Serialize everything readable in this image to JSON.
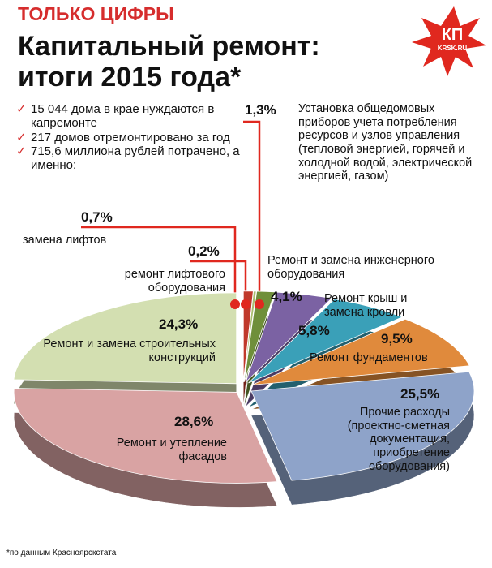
{
  "kicker": "ТОЛЬКО ЦИФРЫ",
  "logo": {
    "main": "КП",
    "sub": "KRSK.RU"
  },
  "notes": [
    "15 044 дома в крае нуждаются в капремонте",
    "217 домов отремонтировано за год",
    "715,6 миллиона рублей потрачено, а именно:"
  ],
  "footnote": "*по данным Красноярскстата",
  "chart_data": {
    "type": "pie",
    "title": "Капитальный ремонт: итоги 2015 года*",
    "categories": [
      "замена лифтов",
      "ремонт лифтового оборудования",
      "Установка общедомовых приборов учета потребления ресурсов и узлов управления (тепловой энергией, горячей и холодной водой, электрической энергией, газом)",
      "Ремонт и замена инженерного оборудования",
      "Ремонт крыш и замена кровли",
      "Ремонт фундаментов",
      "Прочие расходы (проектно-сметная документация, приобретение оборудования)",
      "Ремонт и утепление фасадов",
      "Ремонт и замена строительных конструкций"
    ],
    "values": [
      0.7,
      0.2,
      1.3,
      4.1,
      5.8,
      9.5,
      25.5,
      28.6,
      24.3
    ],
    "value_labels": [
      "0,7%",
      "0,2%",
      "1,3%",
      "4,1%",
      "5,8%",
      "9,5%",
      "25,5%",
      "28,6%",
      "24,3%"
    ],
    "colors": [
      "#c0392b",
      "#a9bd6e",
      "#6f8f3a",
      "#7b62a3",
      "#3aa0b8",
      "#e08a3c",
      "#8ea3c9",
      "#d9a3a3",
      "#d3dfb1"
    ]
  }
}
